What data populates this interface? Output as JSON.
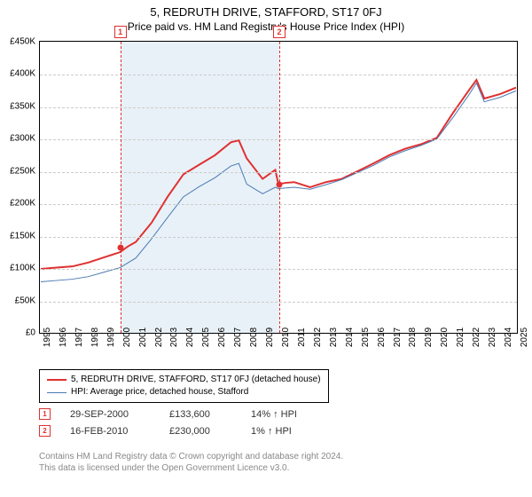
{
  "title": "5, REDRUTH DRIVE, STAFFORD, ST17 0FJ",
  "subtitle": "Price paid vs. HM Land Registry's House Price Index (HPI)",
  "chart": {
    "type": "line",
    "background_color": "#ffffff",
    "grid_color": "#cccccc",
    "ylim": [
      0,
      450
    ],
    "ytick_step": 50,
    "ytick_prefix": "£",
    "ytick_suffix": "K",
    "years": [
      "1995",
      "1996",
      "1997",
      "1998",
      "1999",
      "2000",
      "2001",
      "2002",
      "2003",
      "2004",
      "2005",
      "2006",
      "2007",
      "2008",
      "2009",
      "2010",
      "2011",
      "2012",
      "2013",
      "2014",
      "2015",
      "2016",
      "2017",
      "2018",
      "2019",
      "2020",
      "2021",
      "2022",
      "2023",
      "2024",
      "2025"
    ],
    "shaded_band": {
      "from_year": 2000,
      "to_year": 2010,
      "color": "#d6e5f0"
    },
    "event_lines": [
      {
        "n": "1",
        "year": 2000,
        "price_k": 133.6
      },
      {
        "n": "2",
        "year": 2010,
        "price_k": 230
      }
    ],
    "series": [
      {
        "name": "5, REDRUTH DRIVE, STAFFORD, ST17 0FJ (detached house)",
        "color": "#e03030",
        "width": 2,
        "points": [
          [
            1995,
            98
          ],
          [
            1996,
            100
          ],
          [
            1997,
            102
          ],
          [
            1998,
            108
          ],
          [
            1999,
            116
          ],
          [
            2000,
            124
          ],
          [
            2000.5,
            133
          ],
          [
            2001,
            140
          ],
          [
            2002,
            170
          ],
          [
            2003,
            210
          ],
          [
            2004,
            245
          ],
          [
            2005,
            260
          ],
          [
            2006,
            275
          ],
          [
            2007,
            295
          ],
          [
            2007.5,
            298
          ],
          [
            2008,
            270
          ],
          [
            2009,
            238
          ],
          [
            2009.8,
            252
          ],
          [
            2010,
            230
          ],
          [
            2010.5,
            232
          ],
          [
            2011,
            233
          ],
          [
            2012,
            225
          ],
          [
            2013,
            233
          ],
          [
            2014,
            238
          ],
          [
            2015,
            250
          ],
          [
            2016,
            262
          ],
          [
            2017,
            275
          ],
          [
            2018,
            285
          ],
          [
            2019,
            292
          ],
          [
            2020,
            302
          ],
          [
            2021,
            340
          ],
          [
            2022,
            375
          ],
          [
            2022.5,
            392
          ],
          [
            2023,
            363
          ],
          [
            2024,
            370
          ],
          [
            2025,
            380
          ]
        ]
      },
      {
        "name": "HPI: Average price, detached house, Stafford",
        "color": "#4a7ab4",
        "width": 1,
        "points": [
          [
            1995,
            78
          ],
          [
            1996,
            80
          ],
          [
            1997,
            82
          ],
          [
            1998,
            86
          ],
          [
            1999,
            93
          ],
          [
            2000,
            100
          ],
          [
            2001,
            115
          ],
          [
            2002,
            145
          ],
          [
            2003,
            178
          ],
          [
            2004,
            210
          ],
          [
            2005,
            226
          ],
          [
            2006,
            240
          ],
          [
            2007,
            258
          ],
          [
            2007.5,
            262
          ],
          [
            2008,
            230
          ],
          [
            2009,
            215
          ],
          [
            2009.8,
            225
          ],
          [
            2010,
            223
          ],
          [
            2011,
            225
          ],
          [
            2012,
            222
          ],
          [
            2013,
            229
          ],
          [
            2014,
            237
          ],
          [
            2015,
            248
          ],
          [
            2016,
            259
          ],
          [
            2017,
            272
          ],
          [
            2018,
            282
          ],
          [
            2019,
            290
          ],
          [
            2020,
            300
          ],
          [
            2021,
            333
          ],
          [
            2022,
            368
          ],
          [
            2022.5,
            387
          ],
          [
            2023,
            358
          ],
          [
            2024,
            365
          ],
          [
            2025,
            375
          ]
        ]
      }
    ]
  },
  "legend": {
    "items": [
      {
        "color": "#e03030",
        "width": 2,
        "label": "5, REDRUTH DRIVE, STAFFORD, ST17 0FJ (detached house)"
      },
      {
        "color": "#4a7ab4",
        "width": 1,
        "label": "HPI: Average price, detached house, Stafford"
      }
    ]
  },
  "events": [
    {
      "n": "1",
      "date": "29-SEP-2000",
      "price": "£133,600",
      "hpi": "14% ↑ HPI"
    },
    {
      "n": "2",
      "date": "16-FEB-2010",
      "price": "£230,000",
      "hpi": "1% ↑ HPI"
    }
  ],
  "attribution": {
    "line1": "Contains HM Land Registry data © Crown copyright and database right 2024.",
    "line2": "This data is licensed under the Open Government Licence v3.0."
  }
}
